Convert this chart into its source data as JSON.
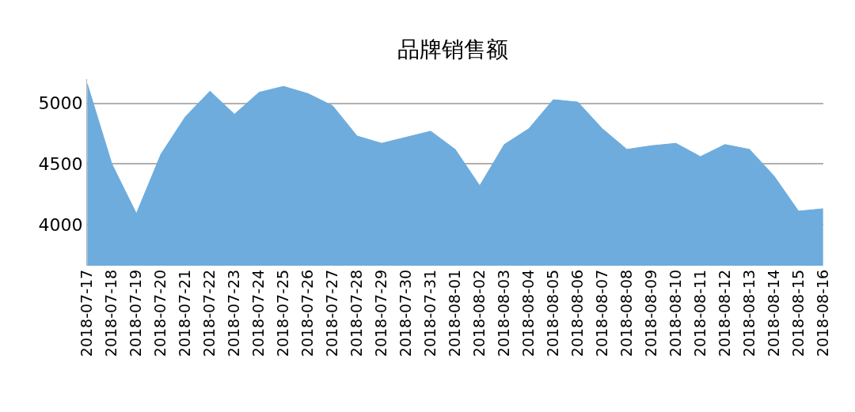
{
  "chart_data": {
    "type": "area",
    "title": "品牌销售额",
    "categories": [
      "2018-07-17",
      "2018-07-18",
      "2018-07-19",
      "2018-07-20",
      "2018-07-21",
      "2018-07-22",
      "2018-07-23",
      "2018-07-24",
      "2018-07-25",
      "2018-07-26",
      "2018-07-27",
      "2018-07-28",
      "2018-07-29",
      "2018-07-30",
      "2018-07-31",
      "2018-08-01",
      "2018-08-02",
      "2018-08-03",
      "2018-08-04",
      "2018-08-05",
      "2018-08-06",
      "2018-08-07",
      "2018-08-08",
      "2018-08-09",
      "2018-08-10",
      "2018-08-11",
      "2018-08-12",
      "2018-08-13",
      "2018-08-14",
      "2018-08-15",
      "2018-08-16"
    ],
    "series": [
      {
        "color": "#6dacdd",
        "values": [
          5160,
          4500,
          4090,
          4580,
          4890,
          5100,
          4910,
          5090,
          5140,
          5080,
          4980,
          4730,
          4670,
          4720,
          4770,
          4620,
          4320,
          4660,
          4790,
          5030,
          5010,
          4790,
          4620,
          4650,
          4670,
          4560,
          4660,
          4620,
          4400,
          4110,
          4130
        ]
      }
    ],
    "ylim": [
      3660,
      5200
    ],
    "yticks": [
      4000,
      4500,
      5000
    ],
    "grid": "y"
  }
}
